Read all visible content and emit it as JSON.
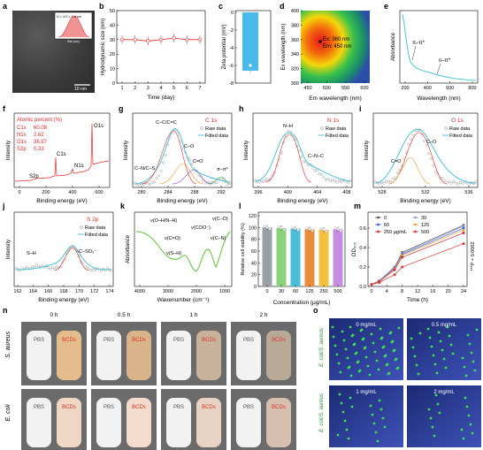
{
  "panels": {
    "a": {
      "letter": "a",
      "scale": "10 nm",
      "inset_label": "D = 4.5 ± 1.4 nm",
      "inset_ylabel": "Frequency (%)",
      "inset_xlabel": "Size (nm)"
    },
    "b": {
      "letter": "b",
      "xlabel": "Time (day)",
      "ylabel": "Hydrodynamic size (nm)",
      "xticks": [
        "1",
        "2",
        "3",
        "4",
        "5",
        "6",
        "7"
      ],
      "yticks": [
        "0",
        "10",
        "20",
        "30",
        "40",
        "50"
      ],
      "values": [
        30,
        30,
        29,
        30,
        31,
        30,
        30
      ]
    },
    "c": {
      "letter": "c",
      "ylabel": "Zeta potential (mV)",
      "yticks": [
        "0",
        "-2",
        "-4",
        "-6",
        "-8"
      ],
      "value": -6.6
    },
    "d": {
      "letter": "d",
      "xlabel": "Em wavelength (nm)",
      "ylabel": "Ex wavelength (nm)",
      "xticks": [
        "450",
        "500",
        "550",
        "600"
      ],
      "yticks": [
        "300",
        "320",
        "340",
        "360",
        "380",
        "400"
      ],
      "annotation_ex": "Ex: 360 nm",
      "annotation_em": "Em: 450 nm"
    },
    "e": {
      "letter": "e",
      "xlabel": "Wavelength (nm)",
      "ylabel": "Absorbance",
      "xticks": [
        "200",
        "400",
        "600",
        "800"
      ],
      "label1": "π–π*",
      "label2": "n–π*"
    },
    "f": {
      "letter": "f",
      "xlabel": "Binding energy (eV)",
      "ylabel": "Intensity",
      "xticks": [
        "0",
        "200",
        "400",
        "600"
      ],
      "title": "Atomic percent (%)",
      "rows": [
        {
          "el": "C1s",
          "val": "60.08"
        },
        {
          "el": "N1s",
          "val": "2.62"
        },
        {
          "el": "O1s",
          "val": "36.97"
        },
        {
          "el": "S2p",
          "val": "0.33"
        }
      ],
      "peak_o": "O1s",
      "peak_c": "C1s",
      "peak_n": "N1s",
      "peak_s": "S2p"
    },
    "g": {
      "letter": "g",
      "xlabel": "Binding energy (eV)",
      "ylabel": "Intensity",
      "xticks": [
        "280",
        "284",
        "288",
        "292"
      ],
      "title": "C 1s",
      "legend_raw": "Raw data",
      "legend_fit": "Fitted data",
      "l1": "C–C/C=C",
      "l2": "C–O",
      "l3": "C=O",
      "l4": "C–N/C–S",
      "l5": "π–π*"
    },
    "h": {
      "letter": "h",
      "xlabel": "Binding energy (eV)",
      "ylabel": "Intensity",
      "xticks": [
        "396",
        "400",
        "404",
        "408"
      ],
      "title": "N 1s",
      "legend_raw": "Raw data",
      "legend_fit": "Fitted data",
      "l1": "N–H",
      "l2": "C–N–C"
    },
    "i": {
      "letter": "i",
      "xlabel": "Binding energy (eV)",
      "ylabel": "Intensity",
      "xticks": [
        "528",
        "532",
        "536"
      ],
      "title": "O 1s",
      "legend_raw": "Raw data",
      "legend_fit": "Fitted data",
      "l1": "C–O",
      "l2": "C=O"
    },
    "j": {
      "letter": "j",
      "xlabel": "Binding energy (eV)",
      "ylabel": "Intensity",
      "xticks": [
        "162",
        "164",
        "166",
        "168",
        "170",
        "172",
        "174"
      ],
      "title": "S 2p",
      "legend_raw": "Raw data",
      "legend_fit": "Fitted data",
      "l1": "S–H",
      "l2": "–C–SO₃⁻"
    },
    "k": {
      "letter": "k",
      "xlabel": "Wavenumber (cm⁻¹)",
      "ylabel": "Absorbance",
      "xticks": [
        "4000",
        "3000",
        "2000",
        "1000"
      ],
      "l1": "ν(O–H/N–H)",
      "l2": "ν(COO⁻)",
      "l3": "ν(C–O)",
      "l4": "ν(C=O)",
      "l5": "ν(S–H)",
      "l6": "ν(C–N)"
    },
    "l": {
      "letter": "l",
      "xlabel": "Concentration (μg/mL)",
      "ylabel": "Relative cell viability (%)",
      "xticks": [
        "0",
        "30",
        "60",
        "125",
        "250",
        "500"
      ],
      "yticks": [
        "0",
        "20",
        "40",
        "60",
        "80",
        "100",
        "120"
      ],
      "values": [
        100,
        99,
        98,
        97,
        96,
        97
      ],
      "colors": [
        "#9aa0a6",
        "#8bd17c",
        "#4bbfd8",
        "#e98d3c",
        "#f2c23c",
        "#c58de0"
      ]
    },
    "m": {
      "letter": "m",
      "xlabel": "Time (h)",
      "ylabel": "OD₆₀₀",
      "xticks": [
        "0",
        "4",
        "8",
        "12",
        "16",
        "20",
        "24"
      ],
      "yticks": [
        "0.0",
        "0.2",
        "0.4",
        "0.6"
      ],
      "stat": "***P = 0.0002",
      "series": [
        {
          "name": "0",
          "color": "#555555",
          "y": [
            0.02,
            0.06,
            0.2,
            0.35,
            0.63
          ]
        },
        {
          "name": "30",
          "color": "#8e9bd8",
          "y": [
            0.02,
            0.06,
            0.2,
            0.34,
            0.62
          ]
        },
        {
          "name": "60",
          "color": "#3a60c9",
          "y": [
            0.02,
            0.05,
            0.19,
            0.33,
            0.6
          ]
        },
        {
          "name": "125",
          "color": "#e9a23b",
          "y": [
            0.02,
            0.05,
            0.18,
            0.32,
            0.58
          ]
        },
        {
          "name": "250 μg/mL",
          "color": "#cf2f2f",
          "y": [
            0.02,
            0.05,
            0.17,
            0.3,
            0.55
          ]
        },
        {
          "name": "500",
          "color": "#d63a3a",
          "y": [
            0.02,
            0.04,
            0.12,
            0.2,
            0.44
          ]
        }
      ],
      "x": [
        0,
        2,
        6,
        8,
        24
      ]
    },
    "n": {
      "letter": "n",
      "times": [
        "0 h",
        "0.5 h",
        "1 h",
        "2 h"
      ],
      "row1": "S. aureus",
      "row2": "E. coli",
      "pbs": "PBS",
      "bcd": "BCDs"
    },
    "o": {
      "letter": "o",
      "side": "E. coli/S. aureus",
      "tiles": [
        "0 mg/mL",
        "0.5 mg/mL",
        "1 mg/mL",
        "2 mg/mL"
      ]
    }
  }
}
